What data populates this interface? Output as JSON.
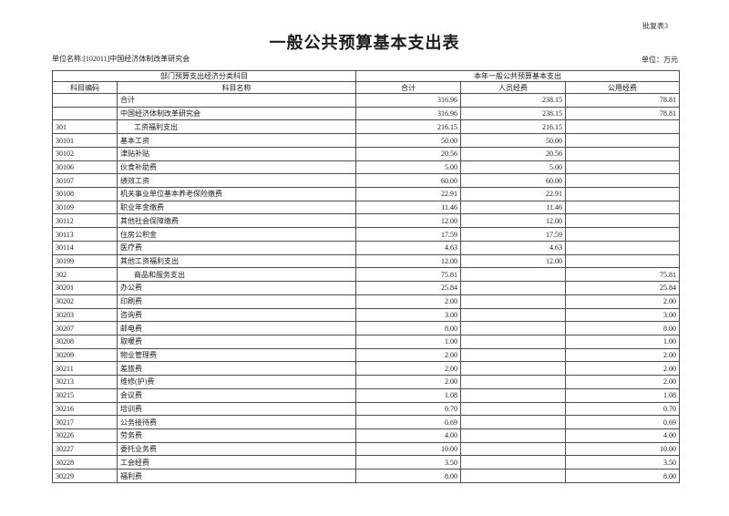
{
  "page": {
    "form_label": "批复表3",
    "title": "一般公共预算基本支出表",
    "unit_name": "单位名称:[102011]中国经济体制改革研究会",
    "unit_measure": "单位：万元"
  },
  "colors": {
    "paper": "#fefefe",
    "border": "#4f4f4f",
    "text": "#1c1c1c"
  },
  "table": {
    "header": {
      "left_group": "部门预算支出经济分类科目",
      "right_group": "本年一般公共预算基本支出",
      "columns": [
        "科目编码",
        "科目名称",
        "合计",
        "人员经费",
        "公用经费"
      ]
    },
    "rows": [
      {
        "code": "",
        "name": "合计",
        "indent": false,
        "bold": false,
        "total": "316.96",
        "personnel": "238.15",
        "public": "78.81"
      },
      {
        "code": "",
        "name": "中国经济体制改革研究会",
        "indent": false,
        "bold": false,
        "total": "316.96",
        "personnel": "238.15",
        "public": "78.81"
      },
      {
        "code": "301",
        "name": "工资福利支出",
        "indent": true,
        "bold": true,
        "total": "216.15",
        "personnel": "216.15",
        "public": ""
      },
      {
        "code": "30101",
        "name": "基本工资",
        "indent": false,
        "bold": false,
        "total": "50.00",
        "personnel": "50.00",
        "public": ""
      },
      {
        "code": "30102",
        "name": "津贴补贴",
        "indent": false,
        "bold": false,
        "total": "20.56",
        "personnel": "20.56",
        "public": ""
      },
      {
        "code": "30106",
        "name": "伙食补助费",
        "indent": false,
        "bold": false,
        "total": "5.00",
        "personnel": "5.00",
        "public": ""
      },
      {
        "code": "30107",
        "name": "绩效工资",
        "indent": false,
        "bold": false,
        "total": "60.00",
        "personnel": "60.00",
        "public": ""
      },
      {
        "code": "30108",
        "name": "机关事业单位基本养老保险缴费",
        "indent": false,
        "bold": false,
        "total": "22.91",
        "personnel": "22.91",
        "public": ""
      },
      {
        "code": "30109",
        "name": "职业年金缴费",
        "indent": false,
        "bold": false,
        "total": "11.46",
        "personnel": "11.46",
        "public": ""
      },
      {
        "code": "30112",
        "name": "其他社会保障缴费",
        "indent": false,
        "bold": false,
        "total": "12.00",
        "personnel": "12.00",
        "public": ""
      },
      {
        "code": "30113",
        "name": "住房公积金",
        "indent": false,
        "bold": false,
        "total": "17.59",
        "personnel": "17.59",
        "public": ""
      },
      {
        "code": "30114",
        "name": "医疗费",
        "indent": false,
        "bold": false,
        "total": "4.63",
        "personnel": "4.63",
        "public": ""
      },
      {
        "code": "30199",
        "name": "其他工资福利支出",
        "indent": false,
        "bold": false,
        "total": "12.00",
        "personnel": "12.00",
        "public": ""
      },
      {
        "code": "302",
        "name": "商品和服务支出",
        "indent": true,
        "bold": true,
        "total": "75.81",
        "personnel": "",
        "public": "75.81"
      },
      {
        "code": "30201",
        "name": "办公费",
        "indent": false,
        "bold": false,
        "total": "25.84",
        "personnel": "",
        "public": "25.84"
      },
      {
        "code": "30202",
        "name": "印刷费",
        "indent": false,
        "bold": false,
        "total": "2.00",
        "personnel": "",
        "public": "2.00"
      },
      {
        "code": "30203",
        "name": "咨询费",
        "indent": false,
        "bold": false,
        "total": "3.00",
        "personnel": "",
        "public": "3.00"
      },
      {
        "code": "30207",
        "name": "邮电费",
        "indent": false,
        "bold": false,
        "total": "8.00",
        "personnel": "",
        "public": "8.00"
      },
      {
        "code": "30208",
        "name": "取暖费",
        "indent": false,
        "bold": false,
        "total": "1.00",
        "personnel": "",
        "public": "1.00"
      },
      {
        "code": "30209",
        "name": "物业管理费",
        "indent": false,
        "bold": false,
        "total": "2.00",
        "personnel": "",
        "public": "2.00"
      },
      {
        "code": "30211",
        "name": "差旅费",
        "indent": false,
        "bold": false,
        "total": "2.00",
        "personnel": "",
        "public": "2.00"
      },
      {
        "code": "30213",
        "name": "维修(护)费",
        "indent": false,
        "bold": false,
        "total": "2.00",
        "personnel": "",
        "public": "2.00"
      },
      {
        "code": "30215",
        "name": "会议费",
        "indent": false,
        "bold": false,
        "total": "1.08",
        "personnel": "",
        "public": "1.08"
      },
      {
        "code": "30216",
        "name": "培训费",
        "indent": false,
        "bold": false,
        "total": "0.70",
        "personnel": "",
        "public": "0.70"
      },
      {
        "code": "30217",
        "name": "公务接待费",
        "indent": false,
        "bold": false,
        "total": "0.69",
        "personnel": "",
        "public": "0.69"
      },
      {
        "code": "30226",
        "name": "劳务费",
        "indent": false,
        "bold": false,
        "total": "4.00",
        "personnel": "",
        "public": "4.00"
      },
      {
        "code": "30227",
        "name": "委托业务费",
        "indent": false,
        "bold": false,
        "total": "10.00",
        "personnel": "",
        "public": "10.00"
      },
      {
        "code": "30228",
        "name": "工会经费",
        "indent": false,
        "bold": false,
        "total": "3.50",
        "personnel": "",
        "public": "3.50"
      },
      {
        "code": "30229",
        "name": "福利费",
        "indent": false,
        "bold": false,
        "total": "8.00",
        "personnel": "",
        "public": "8.00"
      }
    ]
  }
}
